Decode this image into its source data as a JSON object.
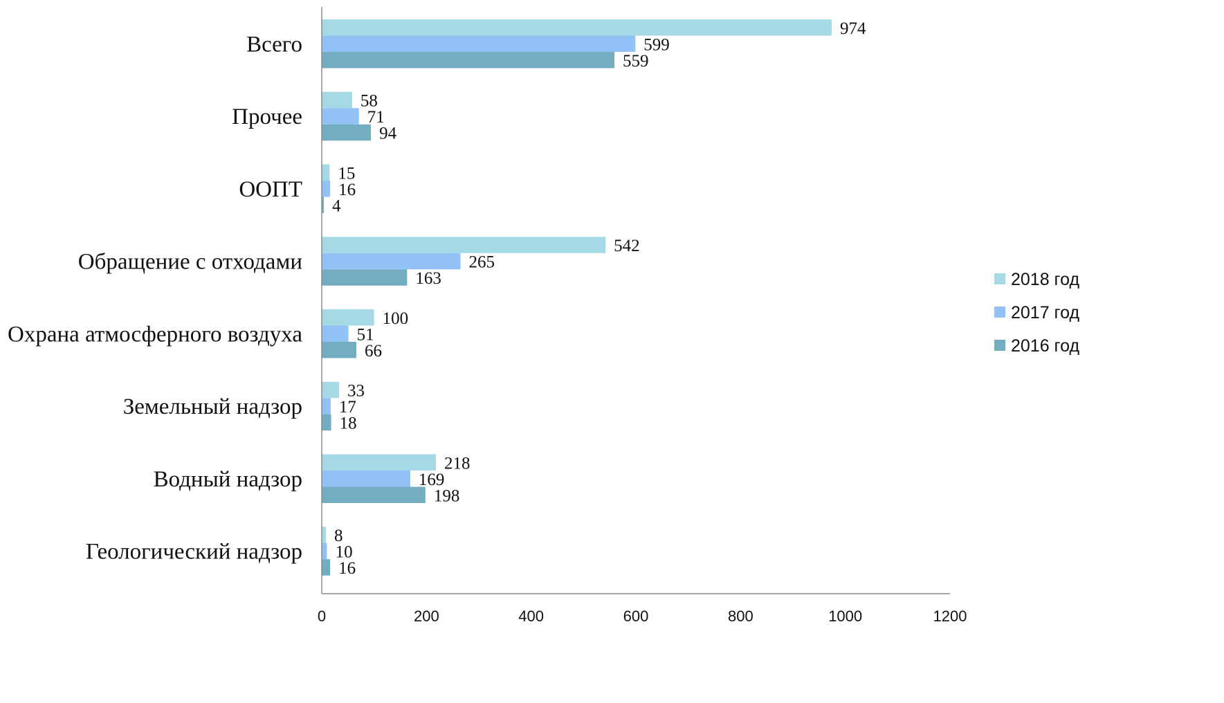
{
  "chart_data": {
    "type": "bar",
    "orientation": "horizontal",
    "categories": [
      "Всего",
      "Прочее",
      "ООПТ",
      "Обращение с отходами",
      "Охрана атмосферного воздуха",
      "Земельный надзор",
      "Водный надзор",
      "Геологический надзор"
    ],
    "series": [
      {
        "name": "2018 год",
        "color": "#a6d9e6",
        "values": [
          974,
          58,
          15,
          542,
          100,
          33,
          218,
          8
        ]
      },
      {
        "name": "2017 год",
        "color": "#92c2f5",
        "values": [
          599,
          71,
          16,
          265,
          51,
          17,
          169,
          10
        ]
      },
      {
        "name": "2016 год",
        "color": "#72adc1",
        "values": [
          559,
          94,
          4,
          163,
          66,
          18,
          198,
          16
        ]
      }
    ],
    "xlim": [
      0,
      1200
    ],
    "xticks": [
      "0",
      "200",
      "400",
      "600",
      "800",
      "1000",
      "1200"
    ],
    "grid": false,
    "legend_position": "right"
  }
}
